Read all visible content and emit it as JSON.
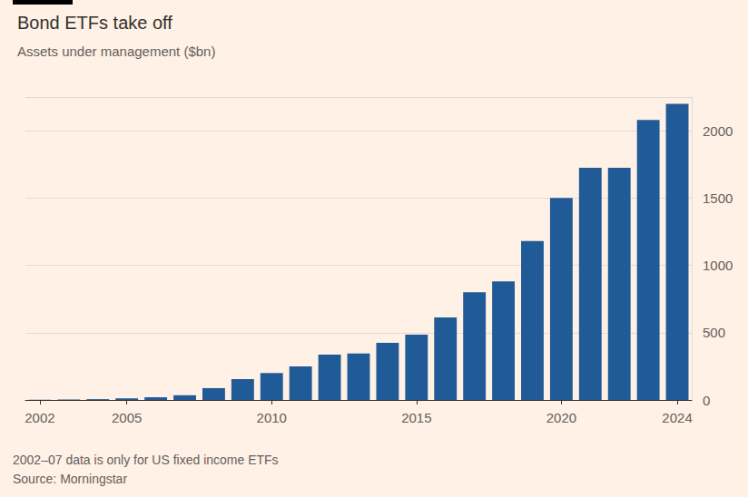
{
  "chart_data": {
    "type": "bar",
    "title": "Bond ETFs take off",
    "subtitle": "Assets under management ($bn)",
    "categories": [
      "2002",
      null,
      null,
      "2005",
      null,
      null,
      null,
      null,
      "2010",
      null,
      null,
      null,
      null,
      "2015",
      null,
      null,
      null,
      null,
      "2020",
      null,
      null,
      null,
      "2024"
    ],
    "values": [
      2,
      4,
      6,
      12,
      20,
      35,
      88,
      155,
      200,
      250,
      337,
      345,
      425,
      485,
      613,
      800,
      880,
      1180,
      1500,
      1725,
      1725,
      2080,
      2200
    ],
    "color": "#205b97",
    "ylim": [
      0,
      2250
    ],
    "yticks": [
      0,
      500,
      1000,
      1500,
      2000
    ],
    "grid": true,
    "footnote": "2002–07 data is only for US fixed income ETFs",
    "source": "Source: Morningstar"
  }
}
